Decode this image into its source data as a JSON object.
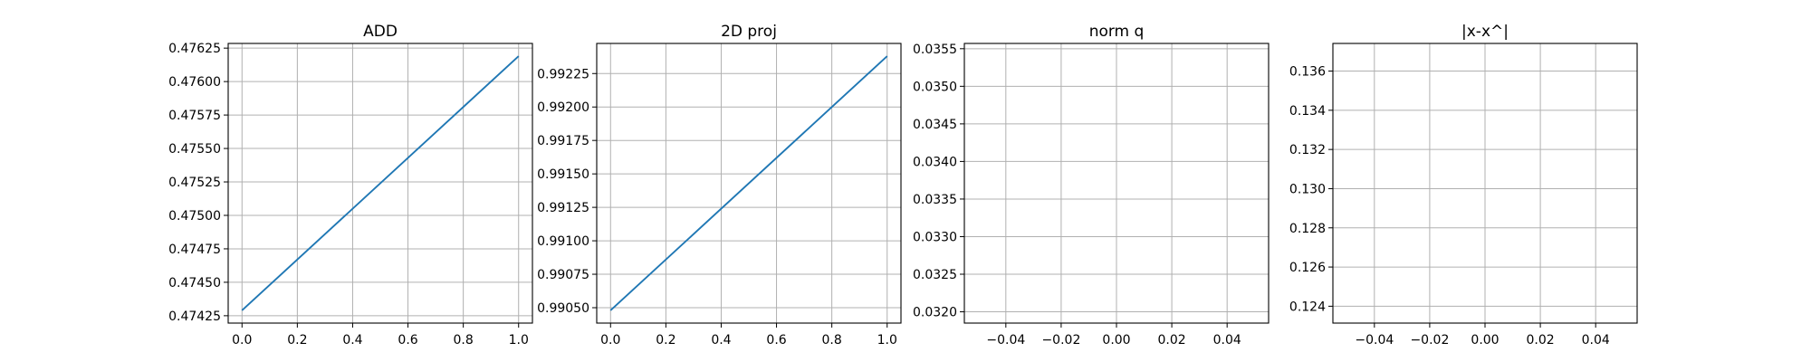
{
  "chart_data": [
    {
      "type": "line",
      "title": "ADD",
      "x": [
        0.0,
        1.0
      ],
      "series": [
        {
          "values": [
            0.47429,
            0.47619
          ]
        }
      ],
      "xlim": [
        -0.05,
        1.05
      ],
      "ylim": [
        0.474195,
        0.476285
      ],
      "xticks": [
        0.0,
        0.2,
        0.4,
        0.6,
        0.8,
        1.0
      ],
      "xtick_labels": [
        "0.0",
        "0.2",
        "0.4",
        "0.6",
        "0.8",
        "1.0"
      ],
      "yticks": [
        0.47425,
        0.4745,
        0.47475,
        0.475,
        0.47525,
        0.4755,
        0.47575,
        0.476,
        0.47625
      ],
      "ytick_labels": [
        "0.47425",
        "0.47450",
        "0.47475",
        "0.47500",
        "0.47525",
        "0.47550",
        "0.47575",
        "0.47600",
        "0.47625"
      ],
      "grid": true,
      "color": "#1f77b4"
    },
    {
      "type": "line",
      "title": "2D proj",
      "x": [
        0.0,
        1.0
      ],
      "series": [
        {
          "values": [
            0.99048,
            0.99238
          ]
        }
      ],
      "xlim": [
        -0.05,
        1.05
      ],
      "ylim": [
        0.990385,
        0.992475
      ],
      "xticks": [
        0.0,
        0.2,
        0.4,
        0.6,
        0.8,
        1.0
      ],
      "xtick_labels": [
        "0.0",
        "0.2",
        "0.4",
        "0.6",
        "0.8",
        "1.0"
      ],
      "yticks": [
        0.9905,
        0.99075,
        0.991,
        0.99125,
        0.9915,
        0.99175,
        0.992,
        0.99225
      ],
      "ytick_labels": [
        "0.99050",
        "0.99075",
        "0.99100",
        "0.99125",
        "0.99150",
        "0.99175",
        "0.99200",
        "0.99225"
      ],
      "grid": true,
      "color": "#1f77b4"
    },
    {
      "type": "line",
      "title": "norm q",
      "x": [],
      "series": [
        {
          "values": []
        }
      ],
      "xlim": [
        -0.055,
        0.055
      ],
      "ylim": [
        0.03185,
        0.03557
      ],
      "xticks": [
        -0.04,
        -0.02,
        0.0,
        0.02,
        0.04
      ],
      "xtick_labels": [
        "−0.04",
        "−0.02",
        "0.00",
        "0.02",
        "0.04"
      ],
      "yticks": [
        0.032,
        0.0325,
        0.033,
        0.0335,
        0.034,
        0.0345,
        0.035,
        0.0355
      ],
      "ytick_labels": [
        "0.0320",
        "0.0325",
        "0.0330",
        "0.0335",
        "0.0340",
        "0.0345",
        "0.0350",
        "0.0355"
      ],
      "grid": true,
      "color": "#1f77b4"
    },
    {
      "type": "line",
      "title": "|x-x^|",
      "x": [],
      "series": [
        {
          "values": []
        }
      ],
      "xlim": [
        -0.055,
        0.055
      ],
      "ylim": [
        0.12314,
        0.13741
      ],
      "xticks": [
        -0.04,
        -0.02,
        0.0,
        0.02,
        0.04
      ],
      "xtick_labels": [
        "−0.04",
        "−0.02",
        "0.00",
        "0.02",
        "0.04"
      ],
      "yticks": [
        0.124,
        0.126,
        0.128,
        0.13,
        0.132,
        0.134,
        0.136
      ],
      "ytick_labels": [
        "0.124",
        "0.126",
        "0.128",
        "0.130",
        "0.132",
        "0.134",
        "0.136"
      ],
      "grid": true,
      "color": "#1f77b4"
    }
  ]
}
